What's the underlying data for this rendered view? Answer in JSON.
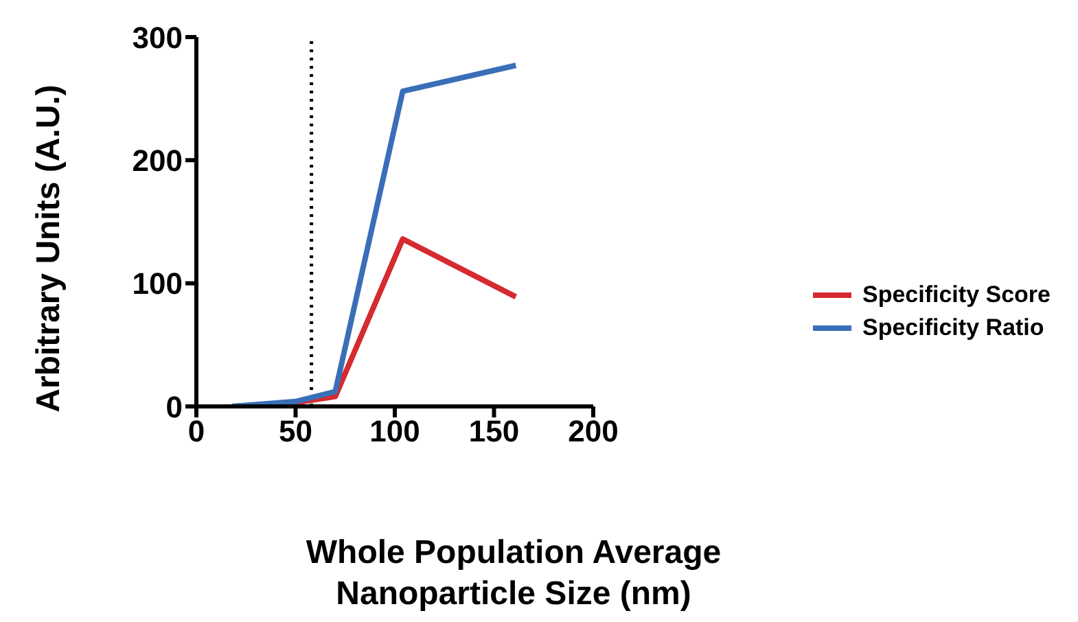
{
  "chart_data": {
    "type": "line",
    "xlabel": "Whole Population Average Nanoparticle Size (nm)",
    "ylabel": "Arbitrary Units (A.U.)",
    "x": [
      18,
      50,
      70,
      104,
      161
    ],
    "series": [
      {
        "name": "Specificity Score",
        "color": "#d52a2f",
        "values": [
          0,
          3,
          8,
          136,
          89
        ]
      },
      {
        "name": "Specificity Ratio",
        "color": "#3a6fb7",
        "values": [
          0,
          4,
          12,
          256,
          277
        ]
      }
    ],
    "xlim": [
      0,
      200
    ],
    "xticks": [
      0,
      50,
      100,
      150,
      200
    ],
    "ylim": [
      0,
      300
    ],
    "yticks": [
      0,
      100,
      200,
      300
    ],
    "ref_lines": [
      {
        "axis": "x",
        "value": 58,
        "line_style": "dotted",
        "color": "#000000"
      }
    ],
    "grid": false,
    "legend": "right",
    "marker": "none",
    "line_style": "solid"
  }
}
